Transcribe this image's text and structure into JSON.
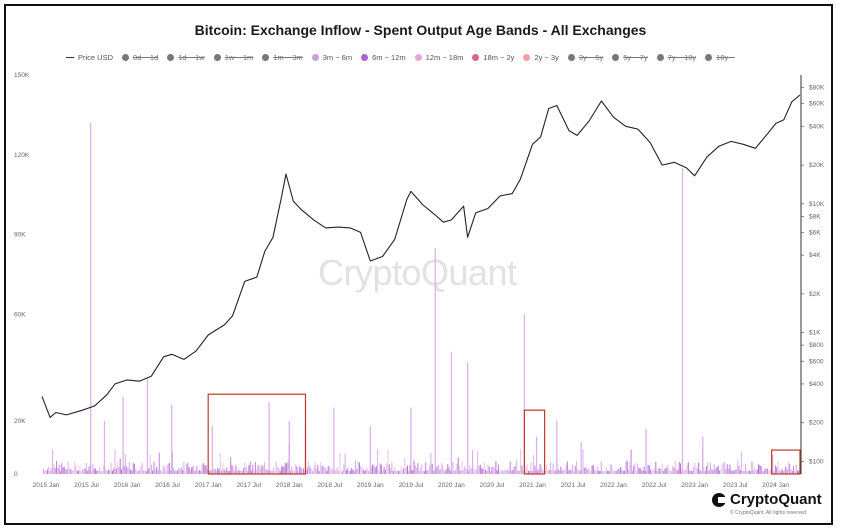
{
  "chart_data": {
    "type": "bar",
    "title": "Bitcoin: Exchange Inflow - Spent Output Age Bands - All Exchanges",
    "legend": {
      "placement": "top",
      "items": [
        {
          "label": "Price USD",
          "kind": "line",
          "color": "#333333",
          "active": true
        },
        {
          "label": "0d ~ 1d",
          "kind": "dot",
          "color": "#777777",
          "active": false
        },
        {
          "label": "1d ~ 1w",
          "kind": "dot",
          "color": "#777777",
          "active": false
        },
        {
          "label": "1w ~ 1m",
          "kind": "dot",
          "color": "#777777",
          "active": false
        },
        {
          "label": "1m ~ 3m",
          "kind": "dot",
          "color": "#777777",
          "active": false
        },
        {
          "label": "3m ~ 6m",
          "kind": "dot",
          "color": "#c7a0e0",
          "active": true
        },
        {
          "label": "6m ~ 12m",
          "kind": "dot",
          "color": "#b15fd6",
          "active": true
        },
        {
          "label": "12m ~ 18m",
          "kind": "dot",
          "color": "#e6a5dc",
          "active": true
        },
        {
          "label": "18m ~ 2y",
          "kind": "dot",
          "color": "#d9648e",
          "active": true
        },
        {
          "label": "2y ~ 3y",
          "kind": "dot",
          "color": "#f2a0a8",
          "active": true
        },
        {
          "label": "3y ~ 5y",
          "kind": "dot",
          "color": "#777777",
          "active": false
        },
        {
          "label": "5y ~ 7y",
          "kind": "dot",
          "color": "#777777",
          "active": false
        },
        {
          "label": "7y ~ 10y",
          "kind": "dot",
          "color": "#777777",
          "active": false
        },
        {
          "label": "10y ~",
          "kind": "dot",
          "color": "#777777",
          "active": false
        }
      ]
    },
    "y_left": {
      "ticks": [
        "0",
        "20K",
        "60K",
        "90K",
        "120K",
        "150K"
      ],
      "tick_values": [
        0,
        20000,
        60000,
        90000,
        120000,
        150000
      ],
      "range": [
        0,
        150000
      ]
    },
    "y_right": {
      "scale": "log",
      "ticks": [
        "$100",
        "$200",
        "$400",
        "$600",
        "$800",
        "$1K",
        "$2K",
        "$4K",
        "$6K",
        "$8K",
        "$10K",
        "$20K",
        "$40K",
        "$60K",
        "$80K"
      ],
      "tick_values": [
        100,
        200,
        400,
        600,
        800,
        1000,
        2000,
        4000,
        6000,
        8000,
        10000,
        20000,
        40000,
        60000,
        80000
      ],
      "range": [
        80,
        100000
      ]
    },
    "x_axis": {
      "ticks": [
        "2015 Jan",
        "2015 Jul",
        "2016 Jan",
        "2016 Jul",
        "2017 Jan",
        "2017 Jul",
        "2018 Jan",
        "2018 Jul",
        "2019 Jan",
        "2019 Jul",
        "2020 Jan",
        "2020 Jul",
        "2021 Jan",
        "2021 Jul",
        "2022 Jan",
        "2022 Jul",
        "2023 Jan",
        "2023 Jul",
        "2024 Jan"
      ],
      "tick_years": [
        2015.0,
        2015.5,
        2016.0,
        2016.5,
        2017.0,
        2017.5,
        2018.0,
        2018.5,
        2019.0,
        2019.5,
        2020.0,
        2020.5,
        2021.0,
        2021.5,
        2022.0,
        2022.5,
        2023.0,
        2023.5,
        2024.0
      ],
      "range": [
        2014.95,
        2024.3
      ]
    },
    "grid": false,
    "price_series": {
      "name": "Price USD",
      "x": [
        2014.95,
        2015.05,
        2015.12,
        2015.25,
        2015.45,
        2015.6,
        2015.75,
        2015.85,
        2016.0,
        2016.15,
        2016.3,
        2016.45,
        2016.55,
        2016.7,
        2016.85,
        2017.0,
        2017.1,
        2017.2,
        2017.3,
        2017.45,
        2017.6,
        2017.7,
        2017.8,
        2017.9,
        2017.96,
        2018.05,
        2018.15,
        2018.3,
        2018.45,
        2018.6,
        2018.75,
        2018.88,
        2019.0,
        2019.15,
        2019.3,
        2019.45,
        2019.5,
        2019.65,
        2019.8,
        2019.9,
        2020.0,
        2020.15,
        2020.2,
        2020.3,
        2020.45,
        2020.6,
        2020.75,
        2020.85,
        2021.0,
        2021.1,
        2021.2,
        2021.3,
        2021.45,
        2021.55,
        2021.7,
        2021.85,
        2022.0,
        2022.15,
        2022.3,
        2022.45,
        2022.6,
        2022.75,
        2022.9,
        2023.0,
        2023.15,
        2023.3,
        2023.45,
        2023.6,
        2023.75,
        2023.9,
        2024.0,
        2024.1,
        2024.2,
        2024.3
      ],
      "values": [
        320,
        220,
        240,
        230,
        250,
        270,
        330,
        400,
        430,
        420,
        460,
        650,
        680,
        620,
        720,
        960,
        1050,
        1150,
        1350,
        2500,
        2700,
        4300,
        5500,
        11000,
        17000,
        10500,
        9000,
        7500,
        6500,
        6600,
        6500,
        6000,
        3600,
        3900,
        5300,
        10800,
        12500,
        9800,
        8200,
        7200,
        7500,
        9600,
        5500,
        8500,
        9200,
        11500,
        12000,
        15500,
        29000,
        33000,
        55000,
        58000,
        37000,
        34000,
        44000,
        63000,
        47000,
        40000,
        38000,
        30000,
        20000,
        21000,
        19000,
        16500,
        23000,
        28000,
        30500,
        29000,
        27000,
        35000,
        42000,
        45000,
        62000,
        70000
      ]
    },
    "inflow_spikes": [
      {
        "x": 2015.55,
        "value": 132000
      },
      {
        "x": 2015.72,
        "value": 20000
      },
      {
        "x": 2015.95,
        "value": 29000
      },
      {
        "x": 2016.25,
        "value": 36000
      },
      {
        "x": 2016.55,
        "value": 26000
      },
      {
        "x": 2017.05,
        "value": 18000
      },
      {
        "x": 2017.75,
        "value": 27000
      },
      {
        "x": 2018.0,
        "value": 20000
      },
      {
        "x": 2018.2,
        "value": 18000
      },
      {
        "x": 2018.55,
        "value": 25000
      },
      {
        "x": 2019.0,
        "value": 18000
      },
      {
        "x": 2019.5,
        "value": 25000
      },
      {
        "x": 2019.8,
        "value": 85000
      },
      {
        "x": 2020.0,
        "value": 46000
      },
      {
        "x": 2020.2,
        "value": 42000
      },
      {
        "x": 2020.9,
        "value": 60000
      },
      {
        "x": 2021.05,
        "value": 14000
      },
      {
        "x": 2021.3,
        "value": 20000
      },
      {
        "x": 2021.6,
        "value": 12000
      },
      {
        "x": 2022.4,
        "value": 17000
      },
      {
        "x": 2022.85,
        "value": 115000
      },
      {
        "x": 2023.1,
        "value": 14000
      }
    ],
    "highlight_boxes": [
      {
        "x_range": [
          2017.0,
          2018.2
        ],
        "y_range": [
          0,
          30000
        ]
      },
      {
        "x_range": [
          2020.9,
          2021.15
        ],
        "y_range": [
          0,
          24000
        ]
      },
      {
        "x_range": [
          2023.95,
          2024.3
        ],
        "y_range": [
          0,
          9000
        ]
      }
    ]
  },
  "branding": {
    "watermark": "CryptoQuant",
    "brand_name": "CryptoQuant",
    "copyright": "© CryptoQuant. All rights reserved."
  }
}
